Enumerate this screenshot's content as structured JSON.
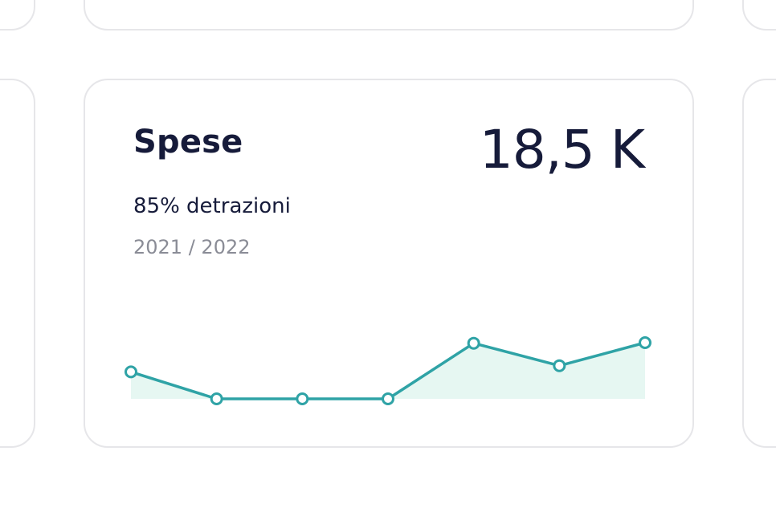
{
  "card": {
    "title": "Spese",
    "value": "18,5 K",
    "subtitle": "85% detrazioni",
    "period": "2021 / 2022"
  },
  "colors": {
    "line": "#2fa3a6",
    "area": "#e6f7f2",
    "text": "#161b3a",
    "muted": "#8a8c96",
    "border": "#e6e6e9"
  },
  "chart_data": {
    "type": "area",
    "values": [
      0.48,
      0.0,
      0.0,
      0.0,
      0.99,
      0.59,
      1.0
    ]
  }
}
